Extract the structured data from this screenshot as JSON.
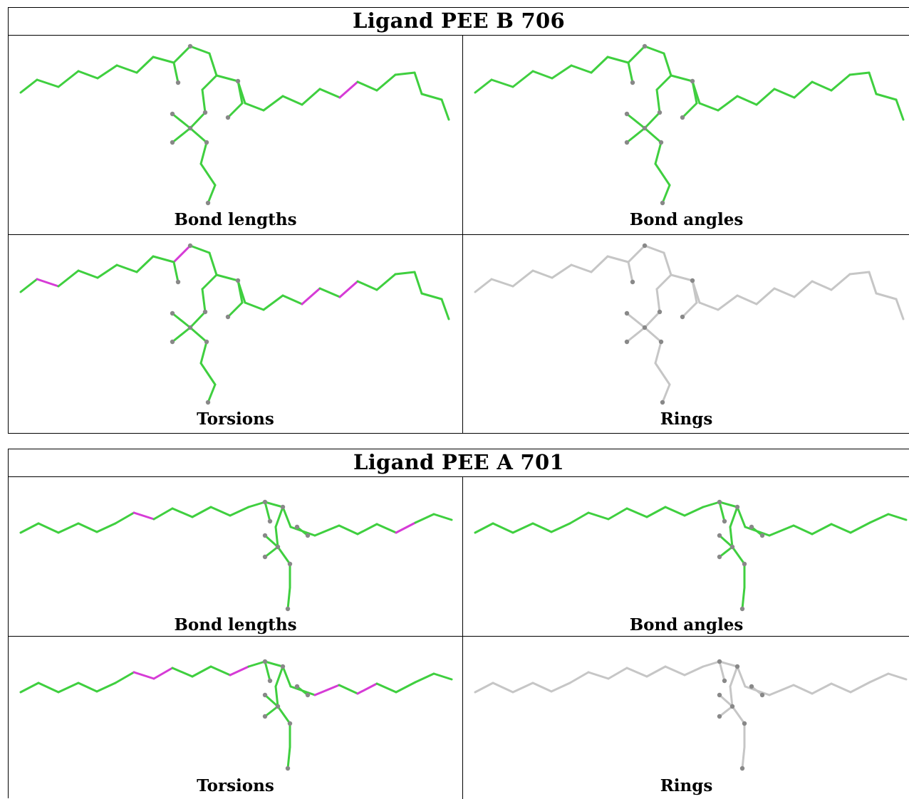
{
  "tables": [
    {
      "title": "Ligand PEE B 706",
      "panels": [
        {
          "caption": "Bond lengths",
          "scheme": "green",
          "highlights": [
            18
          ]
        },
        {
          "caption": "Bond angles",
          "scheme": "green",
          "highlights": []
        },
        {
          "caption": "Torsions",
          "scheme": "green",
          "highlights": [
            1,
            8,
            16,
            18
          ]
        },
        {
          "caption": "Rings",
          "scheme": "grey",
          "highlights": []
        }
      ]
    },
    {
      "title": "Ligand PEE A 701",
      "panels": [
        {
          "caption": "Bond lengths",
          "scheme": "green",
          "highlights": [
            6,
            20
          ]
        },
        {
          "caption": "Bond angles",
          "scheme": "green",
          "highlights": []
        },
        {
          "caption": "Torsions",
          "scheme": "green",
          "highlights": [
            6,
            7,
            11,
            16,
            18
          ]
        },
        {
          "caption": "Rings",
          "scheme": "grey",
          "highlights": []
        }
      ]
    }
  ],
  "colors": {
    "bond_green": "#3fcf3f",
    "bond_magenta": "#d63bd6",
    "bond_grey": "#c6c6c6",
    "atom_grey": "#888888",
    "border": "#000000"
  }
}
